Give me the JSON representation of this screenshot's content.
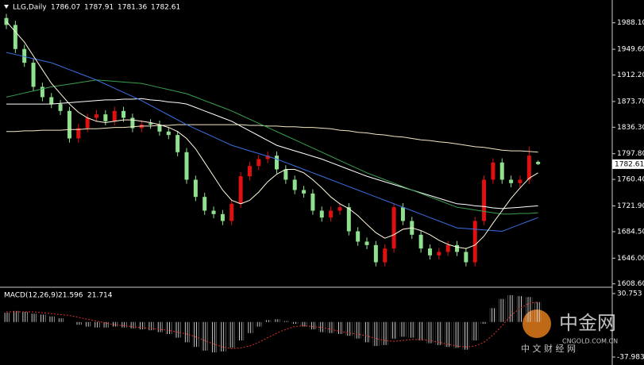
{
  "chart_data": [
    {
      "type": "candlestick",
      "title": "LLG,Daily",
      "ylim": [
        1606,
        2012
      ],
      "yticks": [
        {
          "value": 1988.1,
          "label": "1988.10"
        },
        {
          "value": 1949.6,
          "label": "1949.60"
        },
        {
          "value": 1912.2,
          "label": "1912.20"
        },
        {
          "value": 1873.7,
          "label": "1873.70"
        },
        {
          "value": 1836.3,
          "label": "1836.30"
        },
        {
          "value": 1797.8,
          "label": "1797.80"
        },
        {
          "value": 1760.4,
          "label": "1760.40"
        },
        {
          "value": 1721.9,
          "label": "1721.90"
        },
        {
          "value": 1684.5,
          "label": "1684.50"
        },
        {
          "value": 1646,
          "label": "1646.00"
        },
        {
          "value": 1608.6,
          "label": "1608.60"
        }
      ],
      "up_color": "#e01010",
      "down_color": "#8fe08f",
      "open": [
        1995,
        1985,
        1950,
        1930,
        1895,
        1880,
        1870,
        1860,
        1820,
        1835,
        1850,
        1855,
        1845,
        1860,
        1850,
        1835,
        1842,
        1840,
        1830,
        1825,
        1800,
        1760,
        1735,
        1715,
        1710,
        1700,
        1725,
        1765,
        1780,
        1790,
        1795,
        1775,
        1760,
        1745,
        1740,
        1715,
        1705,
        1715,
        1720,
        1685,
        1670,
        1665,
        1640,
        1660,
        1720,
        1700,
        1680,
        1660,
        1650,
        1655,
        1665,
        1655,
        1640,
        1700,
        1760,
        1785,
        1760,
        1755,
        1760,
        1786.07
      ],
      "high": [
        2001,
        1991,
        1956,
        1936,
        1901,
        1886,
        1876,
        1866,
        1841,
        1856,
        1861,
        1861,
        1866,
        1866,
        1856,
        1846,
        1848,
        1846,
        1836,
        1831,
        1806,
        1766,
        1741,
        1721,
        1716,
        1731,
        1771,
        1786,
        1796,
        1801,
        1801,
        1781,
        1766,
        1751,
        1746,
        1721,
        1721,
        1726,
        1726,
        1691,
        1676,
        1671,
        1666,
        1726,
        1726,
        1706,
        1686,
        1666,
        1661,
        1671,
        1671,
        1661,
        1706,
        1766,
        1791,
        1791,
        1766,
        1766,
        1808,
        1787.91
      ],
      "low": [
        1979,
        1944,
        1924,
        1889,
        1874,
        1864,
        1854,
        1814,
        1814,
        1829,
        1844,
        1839,
        1839,
        1844,
        1829,
        1829,
        1834,
        1824,
        1819,
        1794,
        1754,
        1729,
        1709,
        1704,
        1694,
        1694,
        1719,
        1759,
        1774,
        1784,
        1769,
        1754,
        1739,
        1734,
        1709,
        1699,
        1699,
        1709,
        1679,
        1664,
        1659,
        1634,
        1634,
        1654,
        1694,
        1674,
        1654,
        1644,
        1644,
        1649,
        1649,
        1634,
        1634,
        1694,
        1754,
        1754,
        1749,
        1749,
        1754,
        1781.36
      ],
      "close": [
        1985,
        1950,
        1930,
        1895,
        1880,
        1870,
        1860,
        1820,
        1835,
        1850,
        1855,
        1845,
        1860,
        1850,
        1835,
        1840,
        1840,
        1830,
        1825,
        1800,
        1760,
        1735,
        1715,
        1710,
        1700,
        1725,
        1765,
        1780,
        1790,
        1795,
        1775,
        1760,
        1745,
        1740,
        1715,
        1705,
        1715,
        1720,
        1685,
        1670,
        1665,
        1640,
        1660,
        1720,
        1700,
        1680,
        1660,
        1650,
        1655,
        1665,
        1655,
        1640,
        1700,
        1760,
        1785,
        1760,
        1755,
        1760,
        1795,
        1782.61
      ],
      "series": [
        {
          "color": "#f2e7c4",
          "values": [
            1830,
            1830,
            1831,
            1831,
            1832,
            1832,
            1832,
            1833,
            1833,
            1834,
            1834,
            1835,
            1836,
            1836,
            1837,
            1838,
            1838,
            1839,
            1839,
            1840,
            1840,
            1840,
            1840,
            1840,
            1840,
            1840,
            1840,
            1839,
            1839,
            1838,
            1838,
            1837,
            1837,
            1836,
            1836,
            1835,
            1834,
            1832,
            1831,
            1829,
            1828,
            1826,
            1825,
            1823,
            1822,
            1820,
            1818,
            1817,
            1815,
            1814,
            1812,
            1810,
            1808,
            1807,
            1805,
            1803,
            1802,
            1802,
            1801,
            1800
          ]
        },
        {
          "color": "#ffffff",
          "values": [
            1870,
            1870,
            1870,
            1870,
            1870,
            1870,
            1871,
            1872,
            1873,
            1874,
            1875,
            1876,
            1876,
            1877,
            1877,
            1878,
            1876,
            1875,
            1873,
            1872,
            1870,
            1865,
            1860,
            1855,
            1850,
            1845,
            1838,
            1831,
            1824,
            1817,
            1810,
            1806,
            1802,
            1798,
            1794,
            1790,
            1785,
            1780,
            1775,
            1770,
            1765,
            1761,
            1757,
            1753,
            1749,
            1745,
            1741,
            1737,
            1733,
            1729,
            1725,
            1724,
            1722,
            1721,
            1719,
            1718,
            1719,
            1720,
            1721,
            1722
          ]
        },
        {
          "color": "#3aa050",
          "values": [
            1880,
            1883,
            1886,
            1889,
            1892,
            1895,
            1897,
            1899,
            1901,
            1903,
            1905,
            1904,
            1903,
            1902,
            1901,
            1900,
            1897,
            1894,
            1891,
            1888,
            1885,
            1880,
            1875,
            1870,
            1865,
            1860,
            1854,
            1848,
            1842,
            1836,
            1830,
            1824,
            1818,
            1812,
            1806,
            1800,
            1794,
            1788,
            1782,
            1776,
            1770,
            1765,
            1760,
            1755,
            1750,
            1745,
            1740,
            1735,
            1730,
            1725,
            1720,
            1718,
            1716,
            1714,
            1712,
            1710,
            1710,
            1711,
            1711,
            1712
          ]
        },
        {
          "color": "#3b6fe0",
          "values": [
            1945,
            1942,
            1939,
            1936,
            1933,
            1930,
            1925,
            1920,
            1915,
            1910,
            1905,
            1899,
            1893,
            1887,
            1881,
            1875,
            1868,
            1861,
            1854,
            1847,
            1840,
            1834,
            1828,
            1822,
            1816,
            1810,
            1806,
            1802,
            1798,
            1794,
            1790,
            1785,
            1780,
            1775,
            1770,
            1765,
            1760,
            1755,
            1750,
            1745,
            1740,
            1735,
            1730,
            1725,
            1720,
            1715,
            1710,
            1705,
            1700,
            1695,
            1690,
            1689,
            1688,
            1687,
            1686,
            1685,
            1690,
            1695,
            1700,
            1705
          ]
        },
        {
          "color": "#fffbe0",
          "values": [
            1990,
            1975,
            1960,
            1940,
            1920,
            1900,
            1885,
            1870,
            1858,
            1850,
            1845,
            1843,
            1845,
            1847,
            1847,
            1845,
            1843,
            1840,
            1836,
            1830,
            1820,
            1805,
            1785,
            1765,
            1745,
            1730,
            1725,
            1730,
            1742,
            1757,
            1768,
            1775,
            1775,
            1770,
            1760,
            1748,
            1735,
            1725,
            1718,
            1708,
            1695,
            1683,
            1675,
            1680,
            1688,
            1690,
            1686,
            1680,
            1672,
            1666,
            1662,
            1660,
            1665,
            1678,
            1697,
            1715,
            1733,
            1748,
            1762,
            1770
          ]
        }
      ]
    },
    {
      "type": "macd",
      "title": "MACD(12,26,9)",
      "ylim": [
        -37.983,
        30.753
      ],
      "yticks": [
        30.753,
        -37.983
      ],
      "series": [
        {
          "color": "#ffffff",
          "values": [
            10,
            12,
            11,
            9,
            8,
            6,
            4,
            0,
            -3,
            -5,
            -6,
            -6,
            -5,
            -6,
            -7,
            -8,
            -9,
            -11,
            -13,
            -17,
            -22,
            -27,
            -31,
            -33,
            -32,
            -28,
            -20,
            -12,
            -5,
            2,
            3,
            1,
            -2,
            -5,
            -8,
            -11,
            -12,
            -13,
            -15,
            -18,
            -22,
            -26,
            -25,
            -18,
            -16,
            -17,
            -20,
            -23,
            -25,
            -27,
            -28,
            -30,
            -20,
            -2,
            15,
            25,
            29,
            28,
            27,
            21.596
          ]
        },
        {
          "color": "#e03030",
          "values": [
            11,
            11,
            11,
            11,
            10,
            9,
            8,
            7,
            5,
            3,
            1,
            -1,
            -3,
            -4,
            -5,
            -6,
            -7,
            -8,
            -9,
            -11,
            -13,
            -16,
            -20,
            -24,
            -27,
            -29,
            -28,
            -26,
            -22,
            -17,
            -12,
            -8,
            -5,
            -4,
            -5,
            -6,
            -8,
            -10,
            -12,
            -13,
            -15,
            -18,
            -20,
            -21,
            -20,
            -19,
            -19,
            -20,
            -22,
            -24,
            -26,
            -27,
            -26,
            -22,
            -14,
            -4,
            7,
            15,
            20,
            21.714
          ]
        }
      ]
    }
  ],
  "watermark": {
    "logo": "中金网",
    "site": "CNGOLD.COM.CN",
    "tag": "中 文 财 经 网"
  }
}
